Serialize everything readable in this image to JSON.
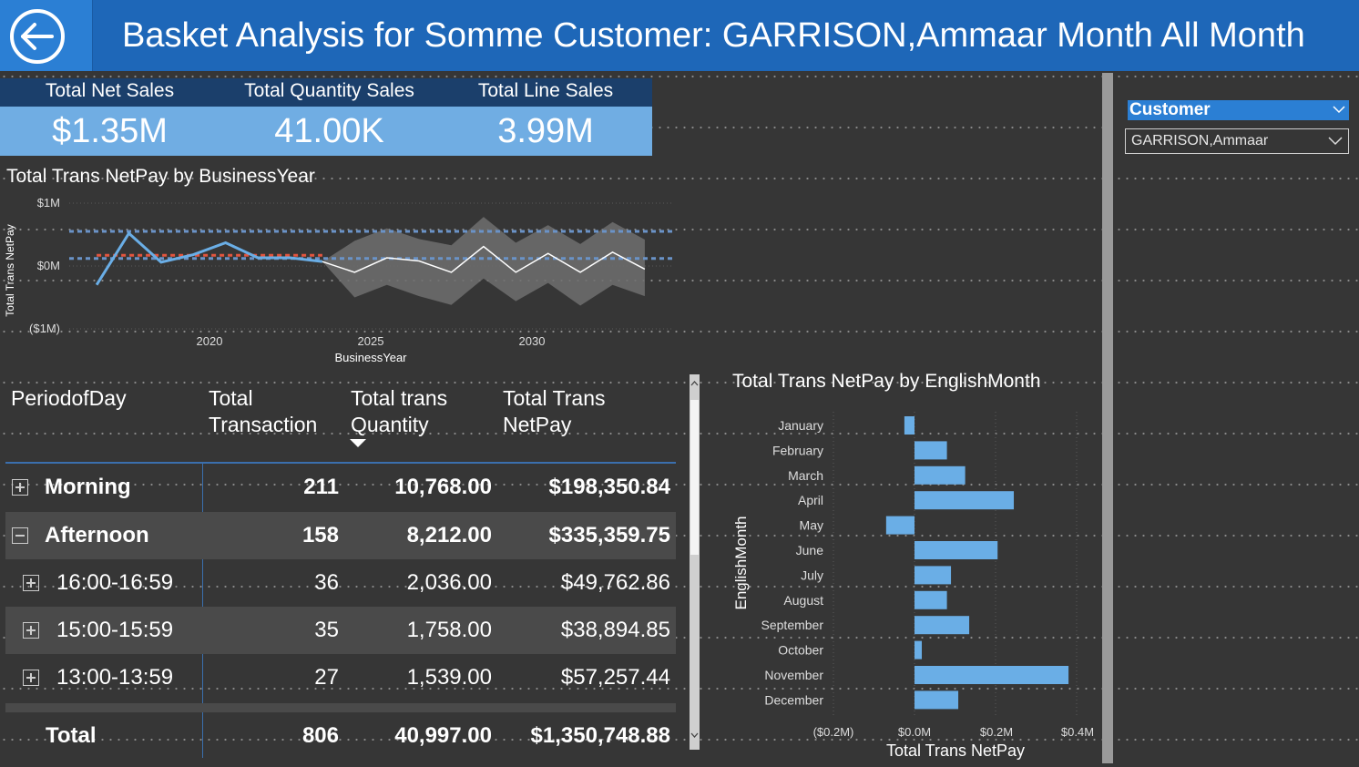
{
  "header": {
    "title": "Basket Analysis for Somme Customer: GARRISON,Ammaar Month All Month",
    "back_icon": "back-arrow-icon"
  },
  "cards": [
    {
      "title": "Total Net Sales",
      "value": "$1.35M"
    },
    {
      "title": "Total Quantity Sales",
      "value": "41.00K"
    },
    {
      "title": "Total Line Sales",
      "value": "3.99M"
    }
  ],
  "colors": {
    "header": "#1e67b8",
    "card_value_bg": "#70ade3",
    "card_title_bg": "#1b3f6b",
    "series": "#6aaee6",
    "forecast_line": "#ffffff",
    "forecast_band": "#6e6e6e",
    "reference_red": "#e2553f",
    "reference_blue": "#6a93c8"
  },
  "line_chart": {
    "title": "Total Trans NetPay by BusinessYear",
    "ylabel": "Total Trans NetPay",
    "xlabel": "BusinessYear",
    "yticks": [
      "$1M",
      "$0M",
      "($1M)"
    ],
    "xticks": [
      "2020",
      "2025",
      "2030"
    ]
  },
  "matrix": {
    "headers": {
      "c1": "PeriodofDay",
      "c2a": "Total",
      "c2b": "Transaction",
      "c3a": "Total trans",
      "c3b": "Quantity",
      "c4a": "Total Trans",
      "c4b": "NetPay"
    },
    "rows": [
      {
        "label": "Morning",
        "trans": "211",
        "qty": "10,768.00",
        "netpay": "$198,350.84"
      },
      {
        "label": "Afternoon",
        "trans": "158",
        "qty": "8,212.00",
        "netpay": "$335,359.75"
      },
      {
        "label": "16:00-16:59",
        "trans": "36",
        "qty": "2,036.00",
        "netpay": "$49,762.86"
      },
      {
        "label": "15:00-15:59",
        "trans": "35",
        "qty": "1,758.00",
        "netpay": "$38,894.85"
      },
      {
        "label": "13:00-13:59",
        "trans": "27",
        "qty": "1,539.00",
        "netpay": "$57,257.44"
      }
    ],
    "total": {
      "label": "Total",
      "trans": "806",
      "qty": "40,997.00",
      "netpay": "$1,350,748.88"
    }
  },
  "bar_chart": {
    "title": "Total Trans NetPay by EnglishMonth",
    "ylabel": "EnglishMonth",
    "xlabel": "Total Trans NetPay",
    "xticks": [
      "($0.2M)",
      "$0.0M",
      "$0.2M",
      "$0.4M"
    ]
  },
  "slicer": {
    "title": "Customer",
    "selected": "GARRISON,Ammaar"
  },
  "chart_data": [
    {
      "type": "line",
      "title": "Total Trans NetPay by BusinessYear",
      "xlabel": "BusinessYear",
      "ylabel": "Total Trans NetPay",
      "xlim": [
        2016,
        2035
      ],
      "ylim": [
        -1000000,
        1000000
      ],
      "series": [
        {
          "x": [
            2016.5,
            2017.5,
            2018.5,
            2019.5,
            2020.5,
            2021.5,
            2022.5,
            2023.5
          ],
          "values": [
            -300000,
            520000,
            60000,
            180000,
            370000,
            130000,
            130000,
            70000
          ]
        }
      ],
      "forecast": {
        "x": [
          2023.5,
          2024.5,
          2025.5,
          2026.5,
          2027.5,
          2028.5,
          2029.5,
          2030.5,
          2031.5,
          2032.5,
          2033.5
        ],
        "values": [
          70000,
          -100000,
          130000,
          80000,
          -100000,
          310000,
          -100000,
          200000,
          -100000,
          220000,
          -50000
        ],
        "upper": [
          70000,
          400000,
          600000,
          430000,
          330000,
          780000,
          370000,
          650000,
          350000,
          700000,
          420000
        ],
        "lower": [
          70000,
          -500000,
          -300000,
          -480000,
          -620000,
          -200000,
          -560000,
          -270000,
          -630000,
          -300000,
          -480000
        ]
      },
      "reference_lines": [
        {
          "color": "red",
          "y": 170000,
          "x_range": [
            2016.5,
            2023.5
          ]
        },
        {
          "color": "blue",
          "y": 550000
        },
        {
          "color": "blue",
          "y": 120000
        }
      ],
      "grid": true
    },
    {
      "type": "bar",
      "orientation": "horizontal",
      "title": "Total Trans NetPay by EnglishMonth",
      "xlabel": "Total Trans NetPay",
      "ylabel": "EnglishMonth",
      "xlim": [
        -0.25,
        0.45
      ],
      "units": "$M",
      "categories": [
        "January",
        "February",
        "March",
        "April",
        "May",
        "June",
        "July",
        "August",
        "September",
        "October",
        "November",
        "December"
      ],
      "values": [
        -0.025,
        0.08,
        0.125,
        0.245,
        -0.07,
        0.205,
        0.09,
        0.08,
        0.135,
        0.018,
        0.38,
        0.108
      ]
    }
  ]
}
